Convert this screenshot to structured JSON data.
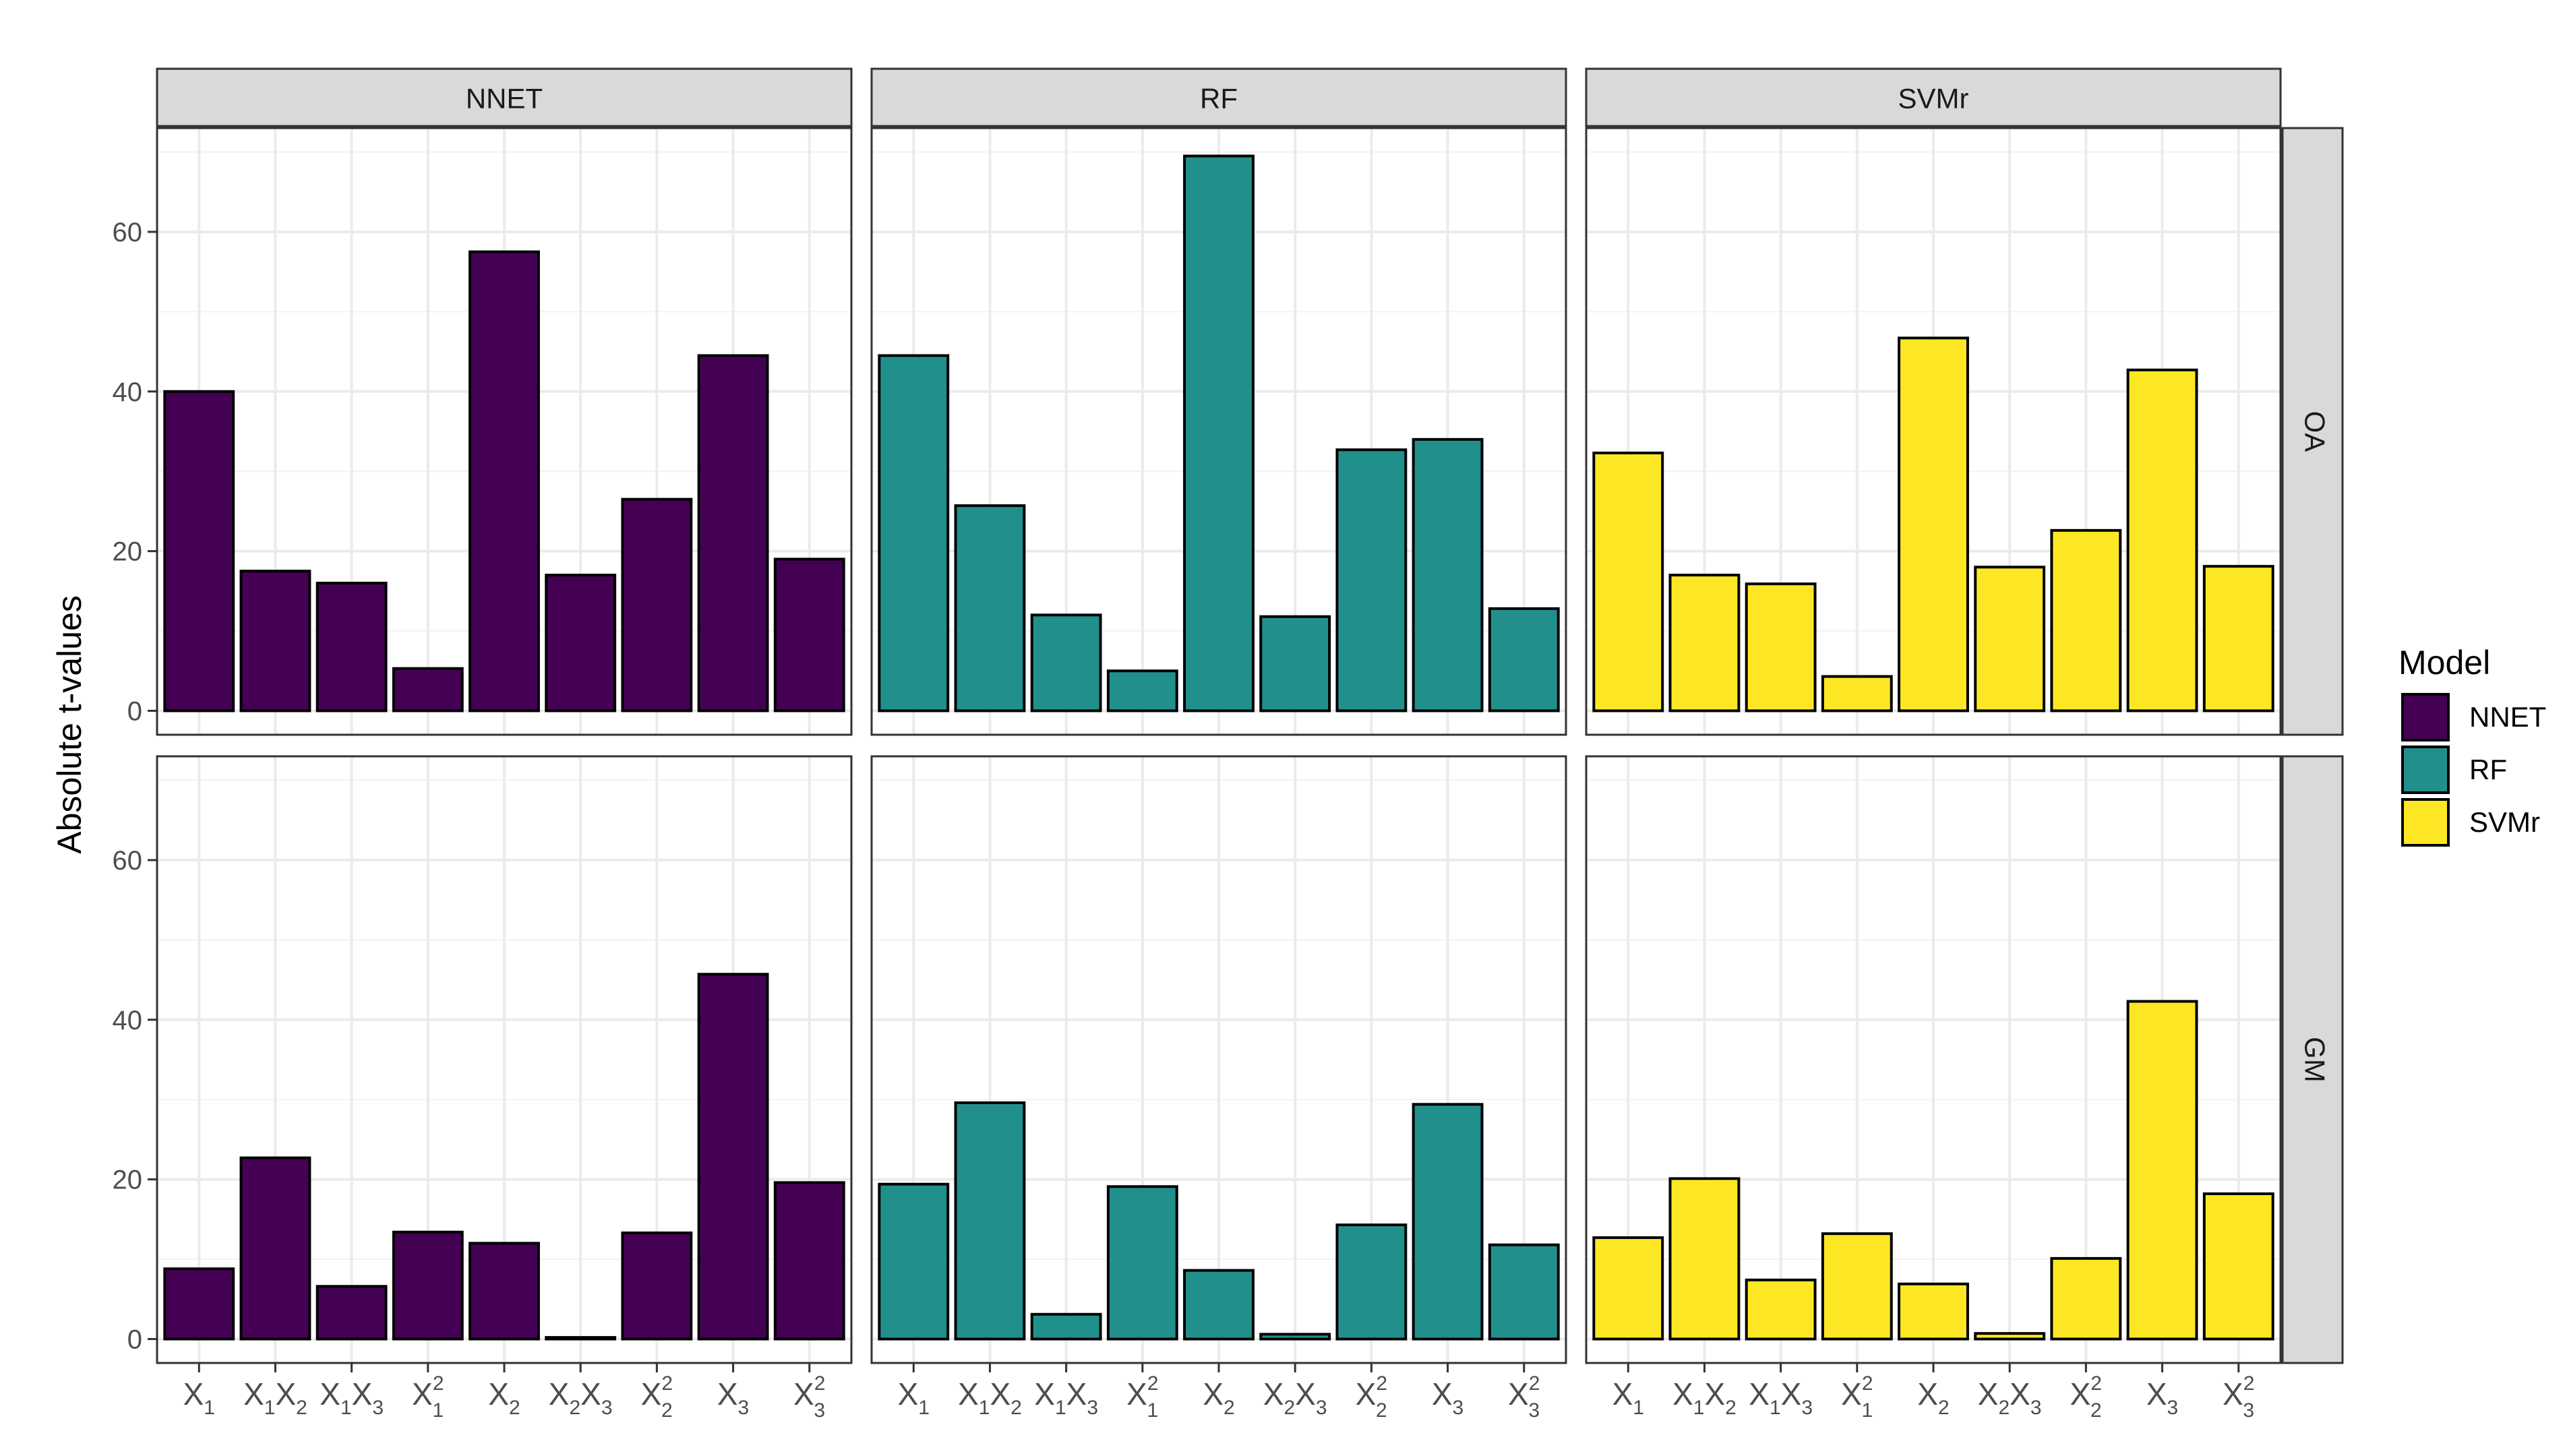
{
  "chart_data": {
    "type": "bar",
    "layout": "facet-grid",
    "column_facets": [
      "NNET",
      "RF",
      "SVMr"
    ],
    "row_facets": [
      "OA",
      "GM"
    ],
    "categories": [
      {
        "base": "X",
        "sub": "1",
        "sup": ""
      },
      {
        "base": "X",
        "sub": "1",
        "sup": "",
        "base2": "X",
        "sub2": "2"
      },
      {
        "base": "X",
        "sub": "1",
        "sup": "",
        "base2": "X",
        "sub2": "3"
      },
      {
        "base": "X",
        "sub": "1",
        "sup": "2"
      },
      {
        "base": "X",
        "sub": "2",
        "sup": ""
      },
      {
        "base": "X",
        "sub": "2",
        "sup": "",
        "base2": "X",
        "sub2": "3"
      },
      {
        "base": "X",
        "sub": "2",
        "sup": "2"
      },
      {
        "base": "X",
        "sub": "3",
        "sup": ""
      },
      {
        "base": "X",
        "sub": "3",
        "sup": "2"
      }
    ],
    "ylabel": "Absolute t-values",
    "xlabel": "",
    "ylim": [
      -3,
      73
    ],
    "yticks": [
      0,
      20,
      40,
      60
    ],
    "grid": true,
    "legend": {
      "title": "Model",
      "position": "right",
      "entries": [
        "NNET",
        "RF",
        "SVMr"
      ]
    },
    "colors": {
      "NNET": "#440154",
      "RF": "#21908C",
      "SVMr": "#FDE725"
    },
    "series": [
      {
        "name": "NNET",
        "row": "OA",
        "values": [
          40.0,
          17.5,
          16.0,
          5.3,
          57.5,
          17.0,
          26.5,
          44.5,
          19.0
        ]
      },
      {
        "name": "RF",
        "row": "OA",
        "values": [
          44.5,
          25.7,
          12.0,
          5.0,
          69.5,
          11.8,
          32.7,
          34.0,
          12.8
        ]
      },
      {
        "name": "SVMr",
        "row": "OA",
        "values": [
          32.3,
          17.0,
          15.9,
          4.3,
          46.7,
          18.0,
          22.6,
          42.7,
          18.1
        ]
      },
      {
        "name": "NNET",
        "row": "GM",
        "values": [
          8.8,
          22.7,
          6.6,
          13.4,
          12.0,
          0.2,
          13.3,
          45.7,
          19.6
        ]
      },
      {
        "name": "RF",
        "row": "GM",
        "values": [
          19.4,
          29.6,
          3.1,
          19.1,
          8.6,
          0.6,
          14.3,
          29.4,
          11.8
        ]
      },
      {
        "name": "SVMr",
        "row": "GM",
        "values": [
          12.7,
          20.1,
          7.4,
          13.2,
          6.9,
          0.7,
          10.1,
          42.3,
          18.2
        ]
      }
    ]
  }
}
